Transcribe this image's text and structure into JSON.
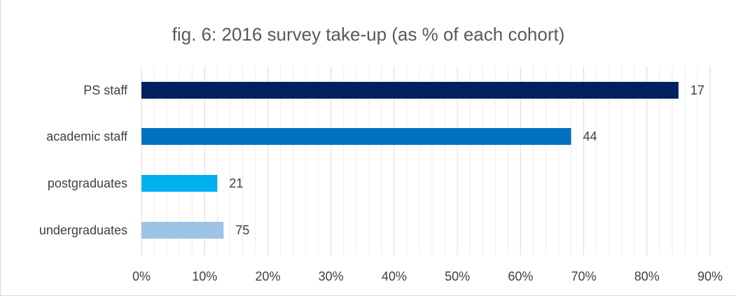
{
  "chart_data": {
    "type": "bar",
    "orientation": "horizontal",
    "title": "fig. 6: 2016 survey take-up (as % of each cohort)",
    "xlabel": "",
    "ylabel": "",
    "categories": [
      "PS staff",
      "academic staff",
      "postgraduates",
      "undergraduates"
    ],
    "values": [
      0.85,
      0.68,
      0.12,
      0.13
    ],
    "data_labels": [
      "17",
      "44",
      "21",
      "75"
    ],
    "colors": [
      "#002060",
      "#0070c0",
      "#00b0f0",
      "#9dc3e6"
    ],
    "xlim": [
      0,
      0.9
    ],
    "x_ticks": [
      0,
      0.1,
      0.2,
      0.3,
      0.4,
      0.5,
      0.6,
      0.7,
      0.8,
      0.9
    ],
    "x_tick_labels": [
      "0%",
      "10%",
      "20%",
      "30%",
      "40%",
      "50%",
      "60%",
      "70%",
      "80%",
      "90%"
    ],
    "grid": true,
    "legend": "none"
  }
}
